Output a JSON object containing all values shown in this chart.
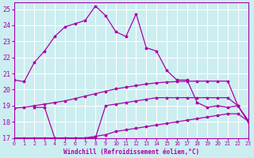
{
  "xlabel": "Windchill (Refroidissement éolien,°C)",
  "background_color": "#cceef0",
  "grid_color": "#ffffff",
  "line_color": "#aa00aa",
  "xlim": [
    0,
    23
  ],
  "ylim": [
    17,
    25.4
  ],
  "xticks": [
    0,
    1,
    2,
    3,
    4,
    5,
    6,
    7,
    8,
    9,
    10,
    11,
    12,
    13,
    14,
    15,
    16,
    17,
    18,
    19,
    20,
    21,
    22,
    23
  ],
  "yticks": [
    17,
    18,
    19,
    20,
    21,
    22,
    23,
    24,
    25
  ],
  "line1_x": [
    0,
    1,
    2,
    3,
    4,
    5,
    6,
    7,
    8,
    9,
    10,
    11,
    12,
    13,
    14,
    15,
    16,
    17,
    18,
    19,
    20,
    21,
    22,
    23
  ],
  "line1_y": [
    20.6,
    20.5,
    21.7,
    22.4,
    23.3,
    23.9,
    24.1,
    24.3,
    25.2,
    24.6,
    23.6,
    23.3,
    24.7,
    22.6,
    22.4,
    21.2,
    20.6,
    20.6,
    19.2,
    18.9,
    19.0,
    18.9,
    19.0,
    18.1
  ],
  "line2_x": [
    2,
    3,
    4,
    5,
    6,
    7,
    8,
    9,
    10,
    11,
    12,
    13,
    14,
    15,
    16,
    17,
    18,
    19,
    20,
    21,
    22,
    23
  ],
  "line2_y": [
    18.9,
    18.9,
    17.0,
    17.0,
    17.0,
    17.0,
    17.0,
    19.0,
    19.1,
    19.2,
    19.3,
    19.4,
    19.5,
    19.5,
    19.5,
    19.5,
    19.5,
    19.5,
    19.5,
    19.5,
    19.0,
    18.0
  ],
  "line3_x": [
    0,
    1,
    2,
    3,
    4,
    5,
    6,
    7,
    8,
    9,
    10,
    11,
    12,
    13,
    14,
    15,
    16,
    17,
    18,
    19,
    20,
    21,
    22,
    23
  ],
  "line3_y": [
    18.85,
    18.9,
    19.0,
    19.1,
    19.2,
    19.3,
    19.45,
    19.6,
    19.75,
    19.9,
    20.05,
    20.15,
    20.25,
    20.35,
    20.42,
    20.47,
    20.5,
    20.52,
    20.53,
    20.53,
    20.53,
    20.53,
    19.0,
    18.05
  ],
  "line4_x": [
    0,
    1,
    2,
    3,
    4,
    5,
    6,
    7,
    8,
    9,
    10,
    11,
    12,
    13,
    14,
    15,
    16,
    17,
    18,
    19,
    20,
    21,
    22,
    23
  ],
  "line4_y": [
    17.0,
    17.0,
    17.0,
    17.0,
    17.0,
    17.0,
    17.0,
    17.0,
    17.1,
    17.2,
    17.4,
    17.5,
    17.6,
    17.7,
    17.8,
    17.9,
    18.0,
    18.1,
    18.2,
    18.3,
    18.4,
    18.5,
    18.5,
    18.05
  ]
}
